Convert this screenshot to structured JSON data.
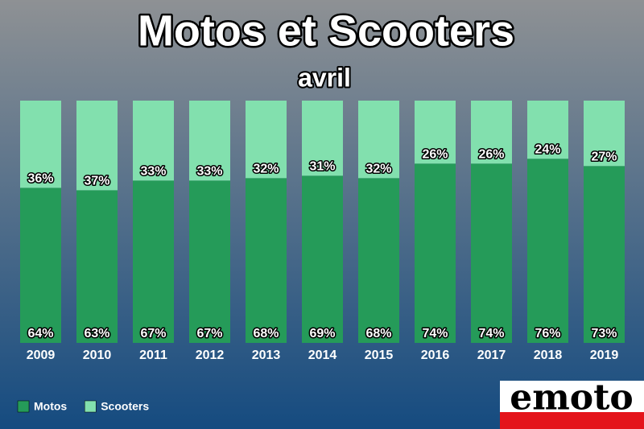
{
  "chart_data": {
    "type": "stacked_bar_percent",
    "title": "Motos et Scooters",
    "subtitle": "avril",
    "categories": [
      "2009",
      "2010",
      "2011",
      "2012",
      "2013",
      "2014",
      "2015",
      "2016",
      "2017",
      "2018",
      "2019"
    ],
    "series": [
      {
        "name": "Motos",
        "color": "#259b59",
        "values": [
          64,
          63,
          67,
          67,
          68,
          69,
          68,
          74,
          74,
          76,
          73
        ],
        "value_labels": [
          "64%",
          "63%",
          "67%",
          "67%",
          "68%",
          "69%",
          "68%",
          "74%",
          "74%",
          "76%",
          "73%"
        ]
      },
      {
        "name": "Scooters",
        "color": "#82e0ae",
        "values": [
          36,
          37,
          33,
          33,
          32,
          31,
          32,
          26,
          26,
          24,
          27
        ],
        "value_labels": [
          "36%",
          "37%",
          "33%",
          "33%",
          "32%",
          "31%",
          "32%",
          "26%",
          "26%",
          "24%",
          "27%"
        ]
      }
    ],
    "legend": "bottom-left",
    "logo": "emoto"
  }
}
